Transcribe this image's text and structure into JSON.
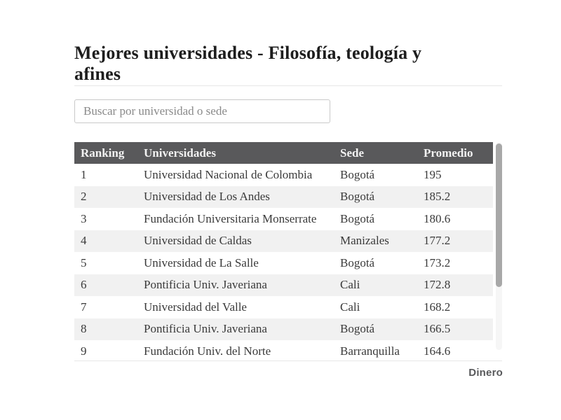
{
  "page": {
    "title_line1": "Mejores universidades - Filosofía, teología y",
    "title_line2": "afines",
    "source_label": "Dinero"
  },
  "search": {
    "placeholder": "Buscar por universidad o sede",
    "value": ""
  },
  "table": {
    "columns": [
      "Ranking",
      "Universidades",
      "Sede",
      "Promedio"
    ],
    "rows": [
      {
        "ranking": "1",
        "universidad": "Universidad Nacional de Colombia",
        "sede": "Bogotá",
        "promedio": "195"
      },
      {
        "ranking": "2",
        "universidad": "Universidad de Los Andes",
        "sede": "Bogotá",
        "promedio": "185.2"
      },
      {
        "ranking": "3",
        "universidad": "Fundación Universitaria Monserrate",
        "sede": "Bogotá",
        "promedio": "180.6"
      },
      {
        "ranking": "4",
        "universidad": "Universidad de Caldas",
        "sede": "Manizales",
        "promedio": "177.2"
      },
      {
        "ranking": "5",
        "universidad": "Universidad de La Salle",
        "sede": "Bogotá",
        "promedio": "173.2"
      },
      {
        "ranking": "6",
        "universidad": "Pontificia Univ. Javeriana",
        "sede": "Cali",
        "promedio": "172.8"
      },
      {
        "ranking": "7",
        "universidad": "Universidad del Valle",
        "sede": "Cali",
        "promedio": "168.2"
      },
      {
        "ranking": "8",
        "universidad": "Pontificia Univ. Javeriana",
        "sede": "Bogotá",
        "promedio": "166.5"
      },
      {
        "ranking": "9",
        "universidad": "Fundación Univ. del Norte",
        "sede": "Barranquilla",
        "promedio": "164.6"
      }
    ]
  },
  "colors": {
    "header_bg": "#59595b",
    "header_text": "#f2f2f2",
    "stripe_bg": "#f1f1f1",
    "row_text": "#3a3a3a",
    "scrollbar_thumb": "#a8a8a8"
  }
}
